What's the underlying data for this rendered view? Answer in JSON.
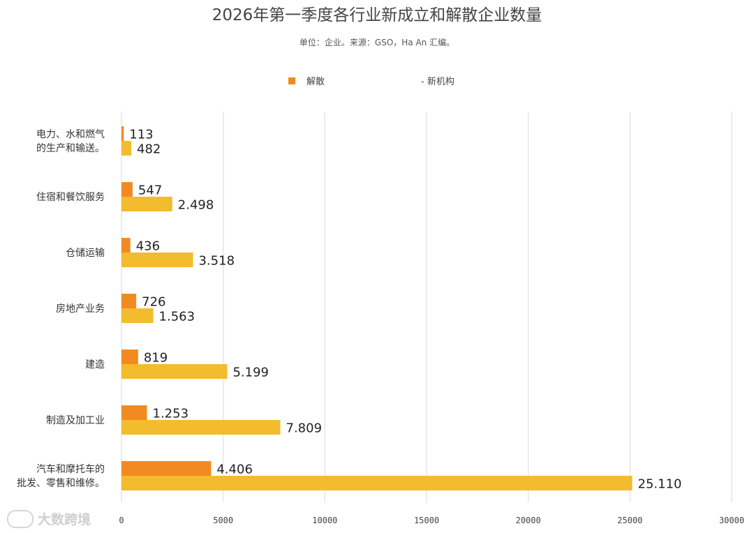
{
  "chart_data": {
    "type": "bar",
    "orientation": "horizontal",
    "title": "2026年第一季度各行业新成立和解散企业数量",
    "subtitle": "单位：企业。来源：GSO，Ha An 汇编。",
    "legend": [
      {
        "name": "解散",
        "color": "#f28a22",
        "prefix": ""
      },
      {
        "name": "新机构",
        "color": "#f3bb2e",
        "prefix": "- "
      }
    ],
    "categories": [
      {
        "lines": [
          "电力、水和燃气",
          "的生产和输送。"
        ]
      },
      {
        "lines": [
          "住宿和餐饮服务"
        ]
      },
      {
        "lines": [
          "仓储运输"
        ]
      },
      {
        "lines": [
          "房地产业务"
        ]
      },
      {
        "lines": [
          "建造"
        ]
      },
      {
        "lines": [
          "制造及加工业"
        ]
      },
      {
        "lines": [
          "汽车和摩托车的",
          "批发、零售和维修。"
        ]
      }
    ],
    "series": [
      {
        "name": "解散",
        "color": "#f28a22",
        "values": [
          113,
          547,
          436,
          726,
          819,
          1253,
          4406
        ],
        "labels": [
          "113",
          "547",
          "436",
          "726",
          "819",
          "1.253",
          "4.406"
        ]
      },
      {
        "name": "新机构",
        "color": "#f3bb2e",
        "values": [
          482,
          2498,
          3518,
          1563,
          5199,
          7809,
          25110
        ],
        "labels": [
          "482",
          "2.498",
          "3.518",
          "1.563",
          "5.199",
          "7.809",
          "25.110"
        ]
      }
    ],
    "xlim": [
      0,
      30000
    ],
    "xticks": [
      0,
      5000,
      10000,
      15000,
      20000,
      25000,
      30000
    ],
    "xtick_labels": [
      "0",
      "5000",
      "10000",
      "15000",
      "20000",
      "25000",
      "30000"
    ],
    "grid": true
  },
  "watermark": "大数跨境",
  "legend_dash": "-"
}
